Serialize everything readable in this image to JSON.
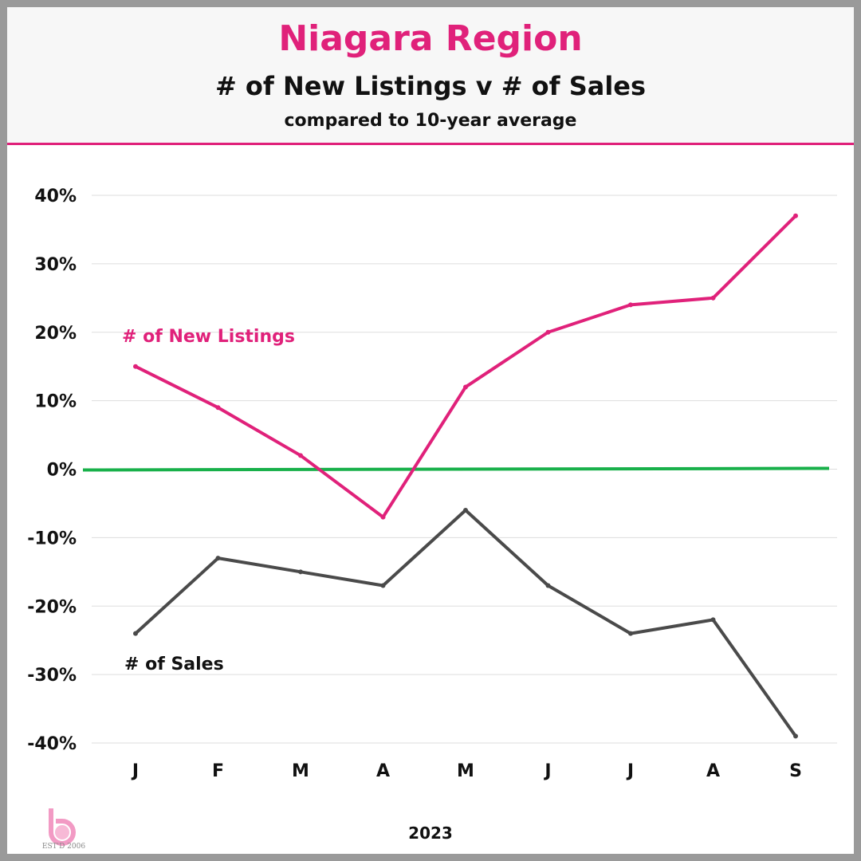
{
  "header": {
    "title": "Niagara Region",
    "subtitle": "# of New Listings v # of Sales",
    "subsubtitle": "compared to 10-year average"
  },
  "logo": {
    "icon": "db-logo-icon",
    "text": "EST'D 2006"
  },
  "colors": {
    "title": "#e0217a",
    "new_listings": "#e0217a",
    "sales": "#4a4a4a",
    "baseline": "#18b04a",
    "grid": "#dddddd"
  },
  "chart_data": {
    "type": "line",
    "categories": [
      "J",
      "F",
      "M",
      "A",
      "M",
      "J",
      "J",
      "A",
      "S"
    ],
    "xlabel": "2023",
    "ylabel": "",
    "ylim": [
      -40,
      40
    ],
    "yticks": [
      40,
      30,
      20,
      10,
      0,
      -10,
      -20,
      -30,
      -40
    ],
    "ytick_labels": [
      "40%",
      "30%",
      "20%",
      "10%",
      "0%",
      "-10%",
      "-20%",
      "-30%",
      "-40%"
    ],
    "grid": true,
    "baseline": 0,
    "series": [
      {
        "name": "# of New Listings",
        "color": "#e0217a",
        "values": [
          15,
          9,
          2,
          -7,
          12,
          20,
          24,
          25,
          37
        ]
      },
      {
        "name": "# of Sales",
        "color": "#4a4a4a",
        "values": [
          -24,
          -13,
          -15,
          -17,
          -6,
          -17,
          -24,
          -22,
          -39
        ]
      }
    ]
  }
}
